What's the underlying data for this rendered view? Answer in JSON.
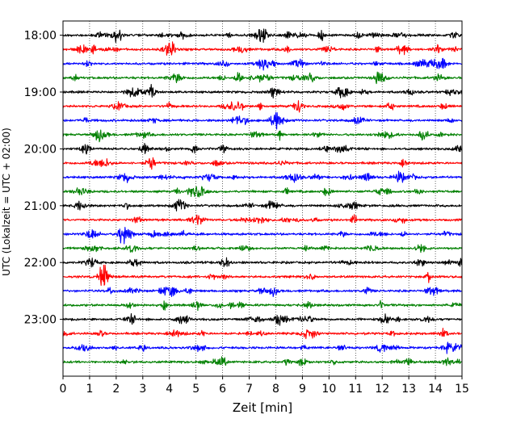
{
  "chart_data": {
    "type": "line",
    "title": "",
    "xlabel": "Zeit  [min]",
    "ylabel": "UTC (Lokalzeit = UTC + 02:00)",
    "xlim": [
      0,
      15
    ],
    "ylim": [
      "17:45",
      "24:00"
    ],
    "x_ticks": [
      "0",
      "1",
      "2",
      "3",
      "4",
      "5",
      "6",
      "7",
      "8",
      "9",
      "10",
      "11",
      "12",
      "13",
      "14",
      "15"
    ],
    "y_ticks": [
      "18:00",
      "19:00",
      "20:00",
      "21:00",
      "22:00",
      "23:00"
    ],
    "grid": "vertical dotted",
    "trace_interval_minutes": 15,
    "trace_colors": [
      "#000000",
      "#ff0000",
      "#0000ff",
      "#008000"
    ],
    "traces": [
      {
        "start": "18:00",
        "color": "#000000"
      },
      {
        "start": "18:15",
        "color": "#ff0000"
      },
      {
        "start": "18:30",
        "color": "#0000ff"
      },
      {
        "start": "18:45",
        "color": "#008000"
      },
      {
        "start": "19:00",
        "color": "#000000"
      },
      {
        "start": "19:15",
        "color": "#ff0000"
      },
      {
        "start": "19:30",
        "color": "#0000ff"
      },
      {
        "start": "19:45",
        "color": "#008000"
      },
      {
        "start": "20:00",
        "color": "#000000"
      },
      {
        "start": "20:15",
        "color": "#ff0000"
      },
      {
        "start": "20:30",
        "color": "#0000ff"
      },
      {
        "start": "20:45",
        "color": "#008000"
      },
      {
        "start": "21:00",
        "color": "#000000"
      },
      {
        "start": "21:15",
        "color": "#ff0000"
      },
      {
        "start": "21:30",
        "color": "#0000ff"
      },
      {
        "start": "21:45",
        "color": "#008000"
      },
      {
        "start": "22:00",
        "color": "#000000"
      },
      {
        "start": "22:15",
        "color": "#ff0000"
      },
      {
        "start": "22:30",
        "color": "#0000ff"
      },
      {
        "start": "22:45",
        "color": "#008000"
      },
      {
        "start": "23:00",
        "color": "#000000"
      },
      {
        "start": "23:15",
        "color": "#ff0000"
      },
      {
        "start": "23:30",
        "color": "#0000ff"
      },
      {
        "start": "23:45",
        "color": "#008000"
      }
    ]
  }
}
